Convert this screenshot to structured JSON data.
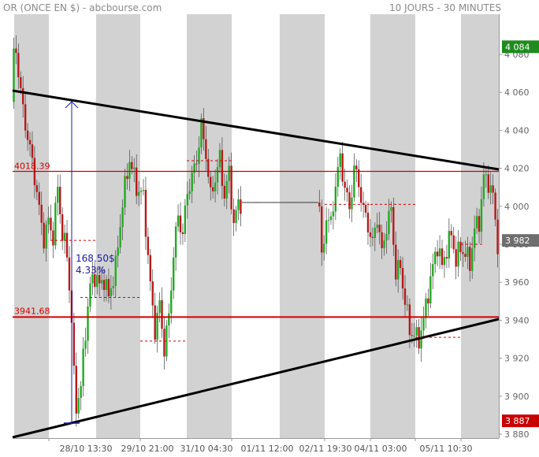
{
  "header": {
    "title": "OR (ONCE EN $) - abcbourse.com",
    "period": "10 JOURS - 30 MINUTES"
  },
  "chart_data": {
    "type": "candlestick",
    "title": "OR (ONCE EN $)",
    "ylim": [
      3880,
      4095
    ],
    "y_ticks": [
      3880,
      3900,
      3920,
      3940,
      3960,
      3980,
      4000,
      4020,
      4040,
      4060,
      4080
    ],
    "y_tick_labels": [
      "3 880",
      "3 900",
      "3 920",
      "3 940",
      "3 960",
      "3 980",
      "4 000",
      "4 020",
      "4 040",
      "4 060",
      "4 080"
    ],
    "x_ticks": [
      "28/10 13:30",
      "29/10 21:00",
      "31/10 04:30",
      "01/11 12:00",
      "02/11 19:30",
      "04/11 03:00",
      "05/11 10:30"
    ],
    "badges": {
      "high": "4 084",
      "last": "3 982",
      "low": "3 887"
    },
    "levels": [
      {
        "value": 4018.39,
        "label": "4018.39"
      },
      {
        "value": 3941.68,
        "label": "3941.68"
      }
    ],
    "measure": {
      "label_amount": "168.50$",
      "label_pct": "4.33%"
    },
    "colors": {
      "up": "#22aa22",
      "down": "#b51a1a",
      "level": "#d40000",
      "trend": "#000000",
      "measure": "#1a1aa8",
      "shade": "#d2d2d2",
      "high_badge": "#1e8b1e",
      "last_badge": "#6e6e6e",
      "low_badge": "#c80000"
    },
    "price_anchors": [
      [
        0,
        4055
      ],
      [
        1,
        4079
      ],
      [
        2,
        4082
      ],
      [
        5,
        4050
      ],
      [
        8,
        4030
      ],
      [
        10,
        4016
      ],
      [
        12,
        3998
      ],
      [
        14,
        3983
      ],
      [
        16,
        3992
      ],
      [
        18,
        3984
      ],
      [
        20,
        4010
      ],
      [
        22,
        3985
      ],
      [
        24,
        3975
      ],
      [
        26,
        3940
      ],
      [
        27,
        3910
      ],
      [
        28,
        3895
      ],
      [
        30,
        3905
      ],
      [
        32,
        3935
      ],
      [
        34,
        3958
      ],
      [
        36,
        3964
      ],
      [
        38,
        3958
      ],
      [
        40,
        3962
      ],
      [
        42,
        3952
      ],
      [
        45,
        3968
      ],
      [
        48,
        4002
      ],
      [
        51,
        4025
      ],
      [
        54,
        4010
      ],
      [
        57,
        4005
      ],
      [
        60,
        3958
      ],
      [
        62,
        3935
      ],
      [
        64,
        3948
      ],
      [
        66,
        3925
      ],
      [
        68,
        3942
      ],
      [
        70,
        3975
      ],
      [
        72,
        3995
      ],
      [
        74,
        3985
      ],
      [
        76,
        4008
      ],
      [
        78,
        4015
      ],
      [
        80,
        4025
      ],
      [
        82,
        4042
      ],
      [
        84,
        4028
      ],
      [
        86,
        4005
      ],
      [
        88,
        4015
      ],
      [
        90,
        4025
      ],
      [
        92,
        4005
      ],
      [
        94,
        4018
      ],
      [
        96,
        3990
      ],
      [
        98,
        4002
      ],
      [
        115,
        4002
      ],
      [
        133,
        4002
      ],
      [
        134,
        3970
      ],
      [
        136,
        3995
      ],
      [
        138,
        3990
      ],
      [
        140,
        4012
      ],
      [
        142,
        4025
      ],
      [
        144,
        4010
      ],
      [
        146,
        3998
      ],
      [
        148,
        4020
      ],
      [
        150,
        4012
      ],
      [
        152,
        3998
      ],
      [
        154,
        3990
      ],
      [
        156,
        3980
      ],
      [
        158,
        3995
      ],
      [
        160,
        3975
      ],
      [
        162,
        3990
      ],
      [
        164,
        3998
      ],
      [
        166,
        3965
      ],
      [
        168,
        3968
      ],
      [
        170,
        3950
      ],
      [
        172,
        3935
      ],
      [
        174,
        3932
      ],
      [
        176,
        3930
      ],
      [
        178,
        3940
      ],
      [
        180,
        3955
      ],
      [
        182,
        3968
      ],
      [
        184,
        3980
      ],
      [
        186,
        3968
      ],
      [
        188,
        3978
      ],
      [
        190,
        3985
      ],
      [
        192,
        3972
      ],
      [
        194,
        3978
      ],
      [
        196,
        3975
      ],
      [
        198,
        3970
      ],
      [
        200,
        3988
      ],
      [
        202,
        3992
      ],
      [
        204,
        4015
      ],
      [
        206,
        4013
      ],
      [
        208,
        4005
      ],
      [
        210,
        3980
      ]
    ]
  }
}
